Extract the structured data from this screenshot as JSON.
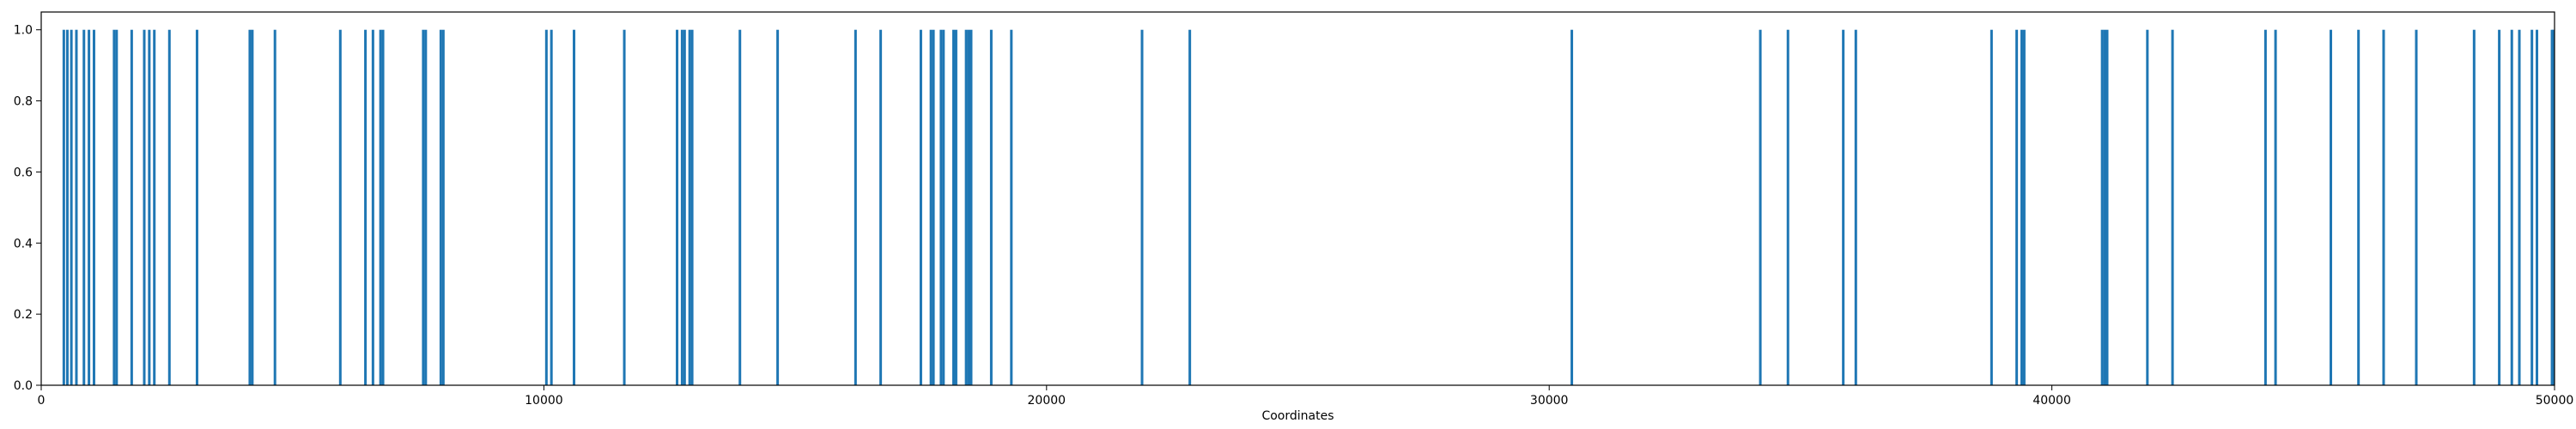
{
  "chart_data": {
    "type": "bar",
    "title": "",
    "xlabel": "Coordinates",
    "ylabel": "",
    "xlim": [
      0,
      50000
    ],
    "ylim": [
      0,
      1.05
    ],
    "grid": false,
    "bar_color": "#1f77b4",
    "xticks": [
      0,
      10000,
      20000,
      30000,
      40000,
      50000
    ],
    "xtick_labels": [
      "0",
      "10000",
      "20000",
      "30000",
      "40000",
      "50000"
    ],
    "yticks": [
      0.0,
      0.2,
      0.4,
      0.6,
      0.8,
      1.0
    ],
    "ytick_labels": [
      "0.0",
      "0.2",
      "0.4",
      "0.6",
      "0.8",
      "1.0"
    ],
    "x": [
      450,
      520,
      600,
      700,
      850,
      950,
      1050,
      1450,
      1500,
      1800,
      2050,
      2150,
      2250,
      2550,
      3100,
      4150,
      4200,
      4650,
      5950,
      6450,
      6600,
      6750,
      6800,
      7600,
      7650,
      7950,
      8000,
      10050,
      10150,
      10600,
      11600,
      12650,
      12750,
      12800,
      12900,
      12950,
      13900,
      14650,
      16200,
      16700,
      17500,
      17700,
      17750,
      17900,
      17950,
      18150,
      18200,
      18400,
      18450,
      18500,
      18900,
      19300,
      21900,
      22850,
      30450,
      34200,
      34750,
      35850,
      36100,
      38800,
      39300,
      39400,
      39450,
      41000,
      41050,
      41100,
      41900,
      42400,
      44250,
      44450,
      45550,
      46100,
      46600,
      47250,
      48400,
      48900,
      49150,
      49300,
      49550,
      49650,
      49950,
      50000
    ],
    "values": [
      1,
      1,
      1,
      1,
      1,
      1,
      1,
      1,
      1,
      1,
      1,
      1,
      1,
      1,
      1,
      1,
      1,
      1,
      1,
      1,
      1,
      1,
      1,
      1,
      1,
      1,
      1,
      1,
      1,
      1,
      1,
      1,
      1,
      1,
      1,
      1,
      1,
      1,
      1,
      1,
      1,
      1,
      1,
      1,
      1,
      1,
      1,
      1,
      1,
      1,
      1,
      1,
      1,
      1,
      1,
      1,
      1,
      1,
      1,
      1,
      1,
      1,
      1,
      1,
      1,
      1,
      1,
      1,
      1,
      1,
      1,
      1,
      1,
      1,
      1,
      1,
      1,
      1,
      1,
      1,
      1,
      1
    ]
  }
}
